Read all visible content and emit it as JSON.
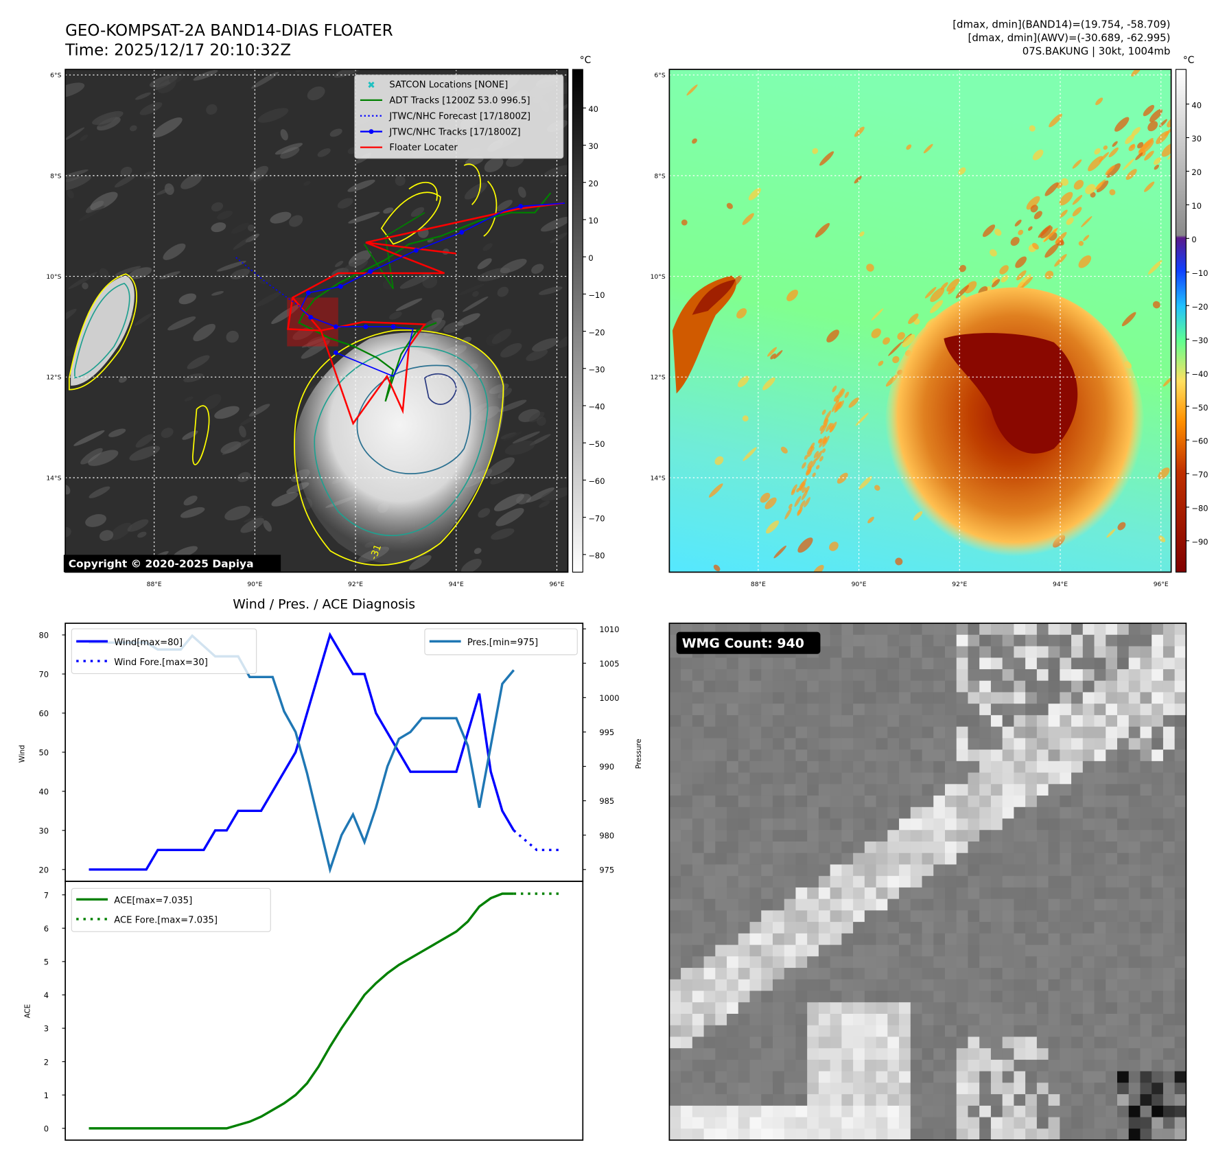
{
  "header": {
    "title_line1": "GEO-KOMPSAT-2A BAND14-DIAS FLOATER",
    "title_line2": "Time: 2025/12/17 20:10:32Z",
    "stats_line1": "[dmax, dmin](BAND14)=(19.754, -58.709)",
    "stats_line2": "[dmax, dmin](AWV)=(-30.689, -62.995)",
    "stats_line3": "07S.BAKUNG | 30kt, 1004mb"
  },
  "map_left": {
    "legend": [
      "SATCON Locations [NONE]",
      "ADT Tracks [1200Z 53.0 996.5]",
      "JTWC/NHC Forecast [17/1800Z]",
      "JTWC/NHC Tracks [17/1800Z]",
      "Floater Locater"
    ],
    "lat_ticks": [
      "6°S",
      "8°S",
      "10°S",
      "12°S",
      "14°S"
    ],
    "lon_ticks": [
      "88°E",
      "90°E",
      "92°E",
      "94°E",
      "96°E"
    ],
    "colorbar_unit": "°C",
    "colorbar_ticks": [
      "40",
      "30",
      "20",
      "10",
      "0",
      "−10",
      "−20",
      "−30",
      "−40",
      "−50",
      "−60",
      "−70",
      "−80"
    ],
    "copyright": "Copyright © 2020-2025 Dapiya",
    "contour_label": "-31"
  },
  "map_right": {
    "lat_ticks": [
      "6°S",
      "8°S",
      "10°S",
      "12°S",
      "14°S"
    ],
    "lon_ticks": [
      "88°E",
      "90°E",
      "92°E",
      "94°E",
      "96°E"
    ],
    "colorbar_unit": "°C",
    "colorbar_ticks": [
      "40",
      "30",
      "20",
      "10",
      "0",
      "−10",
      "−20",
      "−30",
      "−40",
      "−50",
      "−60",
      "−70",
      "−80",
      "−90"
    ]
  },
  "wmg": {
    "label": "WMG Count: 940"
  },
  "chart_data": [
    {
      "type": "line",
      "title": "Wind / Pres. / ACE Diagnosis",
      "ylabel": "Wind",
      "y2label": "Pressure",
      "ylim": [
        18,
        83
      ],
      "y2lim": [
        974,
        1011
      ],
      "yticks": [
        20,
        30,
        40,
        50,
        60,
        70,
        80
      ],
      "y2ticks": [
        975,
        980,
        985,
        990,
        995,
        1000,
        1005,
        1010
      ],
      "x": [
        0,
        1,
        2,
        3,
        4,
        5,
        6,
        7,
        8,
        9,
        10,
        11,
        12,
        13,
        14,
        15,
        16,
        17,
        18,
        19,
        20,
        21,
        22,
        23,
        24,
        25,
        26,
        27,
        28,
        29,
        30,
        31,
        32,
        33,
        34,
        35,
        36,
        37
      ],
      "series": [
        {
          "name": "Wind[max=80]",
          "color": "#0000ff",
          "style": "solid",
          "values": [
            20,
            20,
            20,
            20,
            20,
            20,
            25,
            25,
            25,
            25,
            25,
            30,
            30,
            35,
            35,
            35,
            40,
            45,
            50,
            60,
            70,
            80,
            75,
            70,
            70,
            60,
            55,
            50,
            45,
            45,
            45,
            45,
            45,
            55,
            65,
            45,
            35,
            30
          ]
        },
        {
          "name": "Wind Fore.[max=30]",
          "color": "#0000ff",
          "style": "dotted",
          "x": [
            37,
            38,
            39,
            40,
            41
          ],
          "values": [
            30,
            27.5,
            25,
            25,
            25
          ]
        },
        {
          "name": "Pres.[min=975]",
          "color": "#1f77b4",
          "style": "solid",
          "axis": "right",
          "values": [
            1008,
            1008,
            1008,
            1008,
            1008,
            1008,
            1007,
            1007,
            1007,
            1009,
            1007.5,
            1006,
            1006,
            1006,
            1003,
            1003,
            1003,
            998,
            995,
            989,
            982,
            975,
            980,
            983,
            979,
            984,
            990,
            994,
            995,
            997,
            997,
            997,
            997,
            993,
            984,
            993,
            1002,
            1004
          ]
        }
      ]
    },
    {
      "type": "line",
      "ylabel": "ACE",
      "ylim": [
        -0.35,
        7.4
      ],
      "yticks": [
        0,
        1,
        2,
        3,
        4,
        5,
        6,
        7
      ],
      "series": [
        {
          "name": "ACE[max=7.035]",
          "color": "#008000",
          "style": "solid",
          "values": [
            0,
            0,
            0,
            0,
            0,
            0,
            0,
            0,
            0,
            0,
            0,
            0,
            0,
            0.1,
            0.2,
            0.35,
            0.55,
            0.75,
            1.0,
            1.35,
            1.85,
            2.45,
            3.0,
            3.5,
            4.0,
            4.35,
            4.65,
            4.9,
            5.1,
            5.3,
            5.5,
            5.7,
            5.9,
            6.2,
            6.65,
            6.9,
            7.035,
            7.035
          ]
        },
        {
          "name": "ACE Fore.[max=7.035]",
          "color": "#008000",
          "style": "dotted",
          "x": [
            37,
            38,
            39,
            40,
            41
          ],
          "values": [
            7.035,
            7.035,
            7.035,
            7.035,
            7.035
          ]
        }
      ]
    }
  ]
}
